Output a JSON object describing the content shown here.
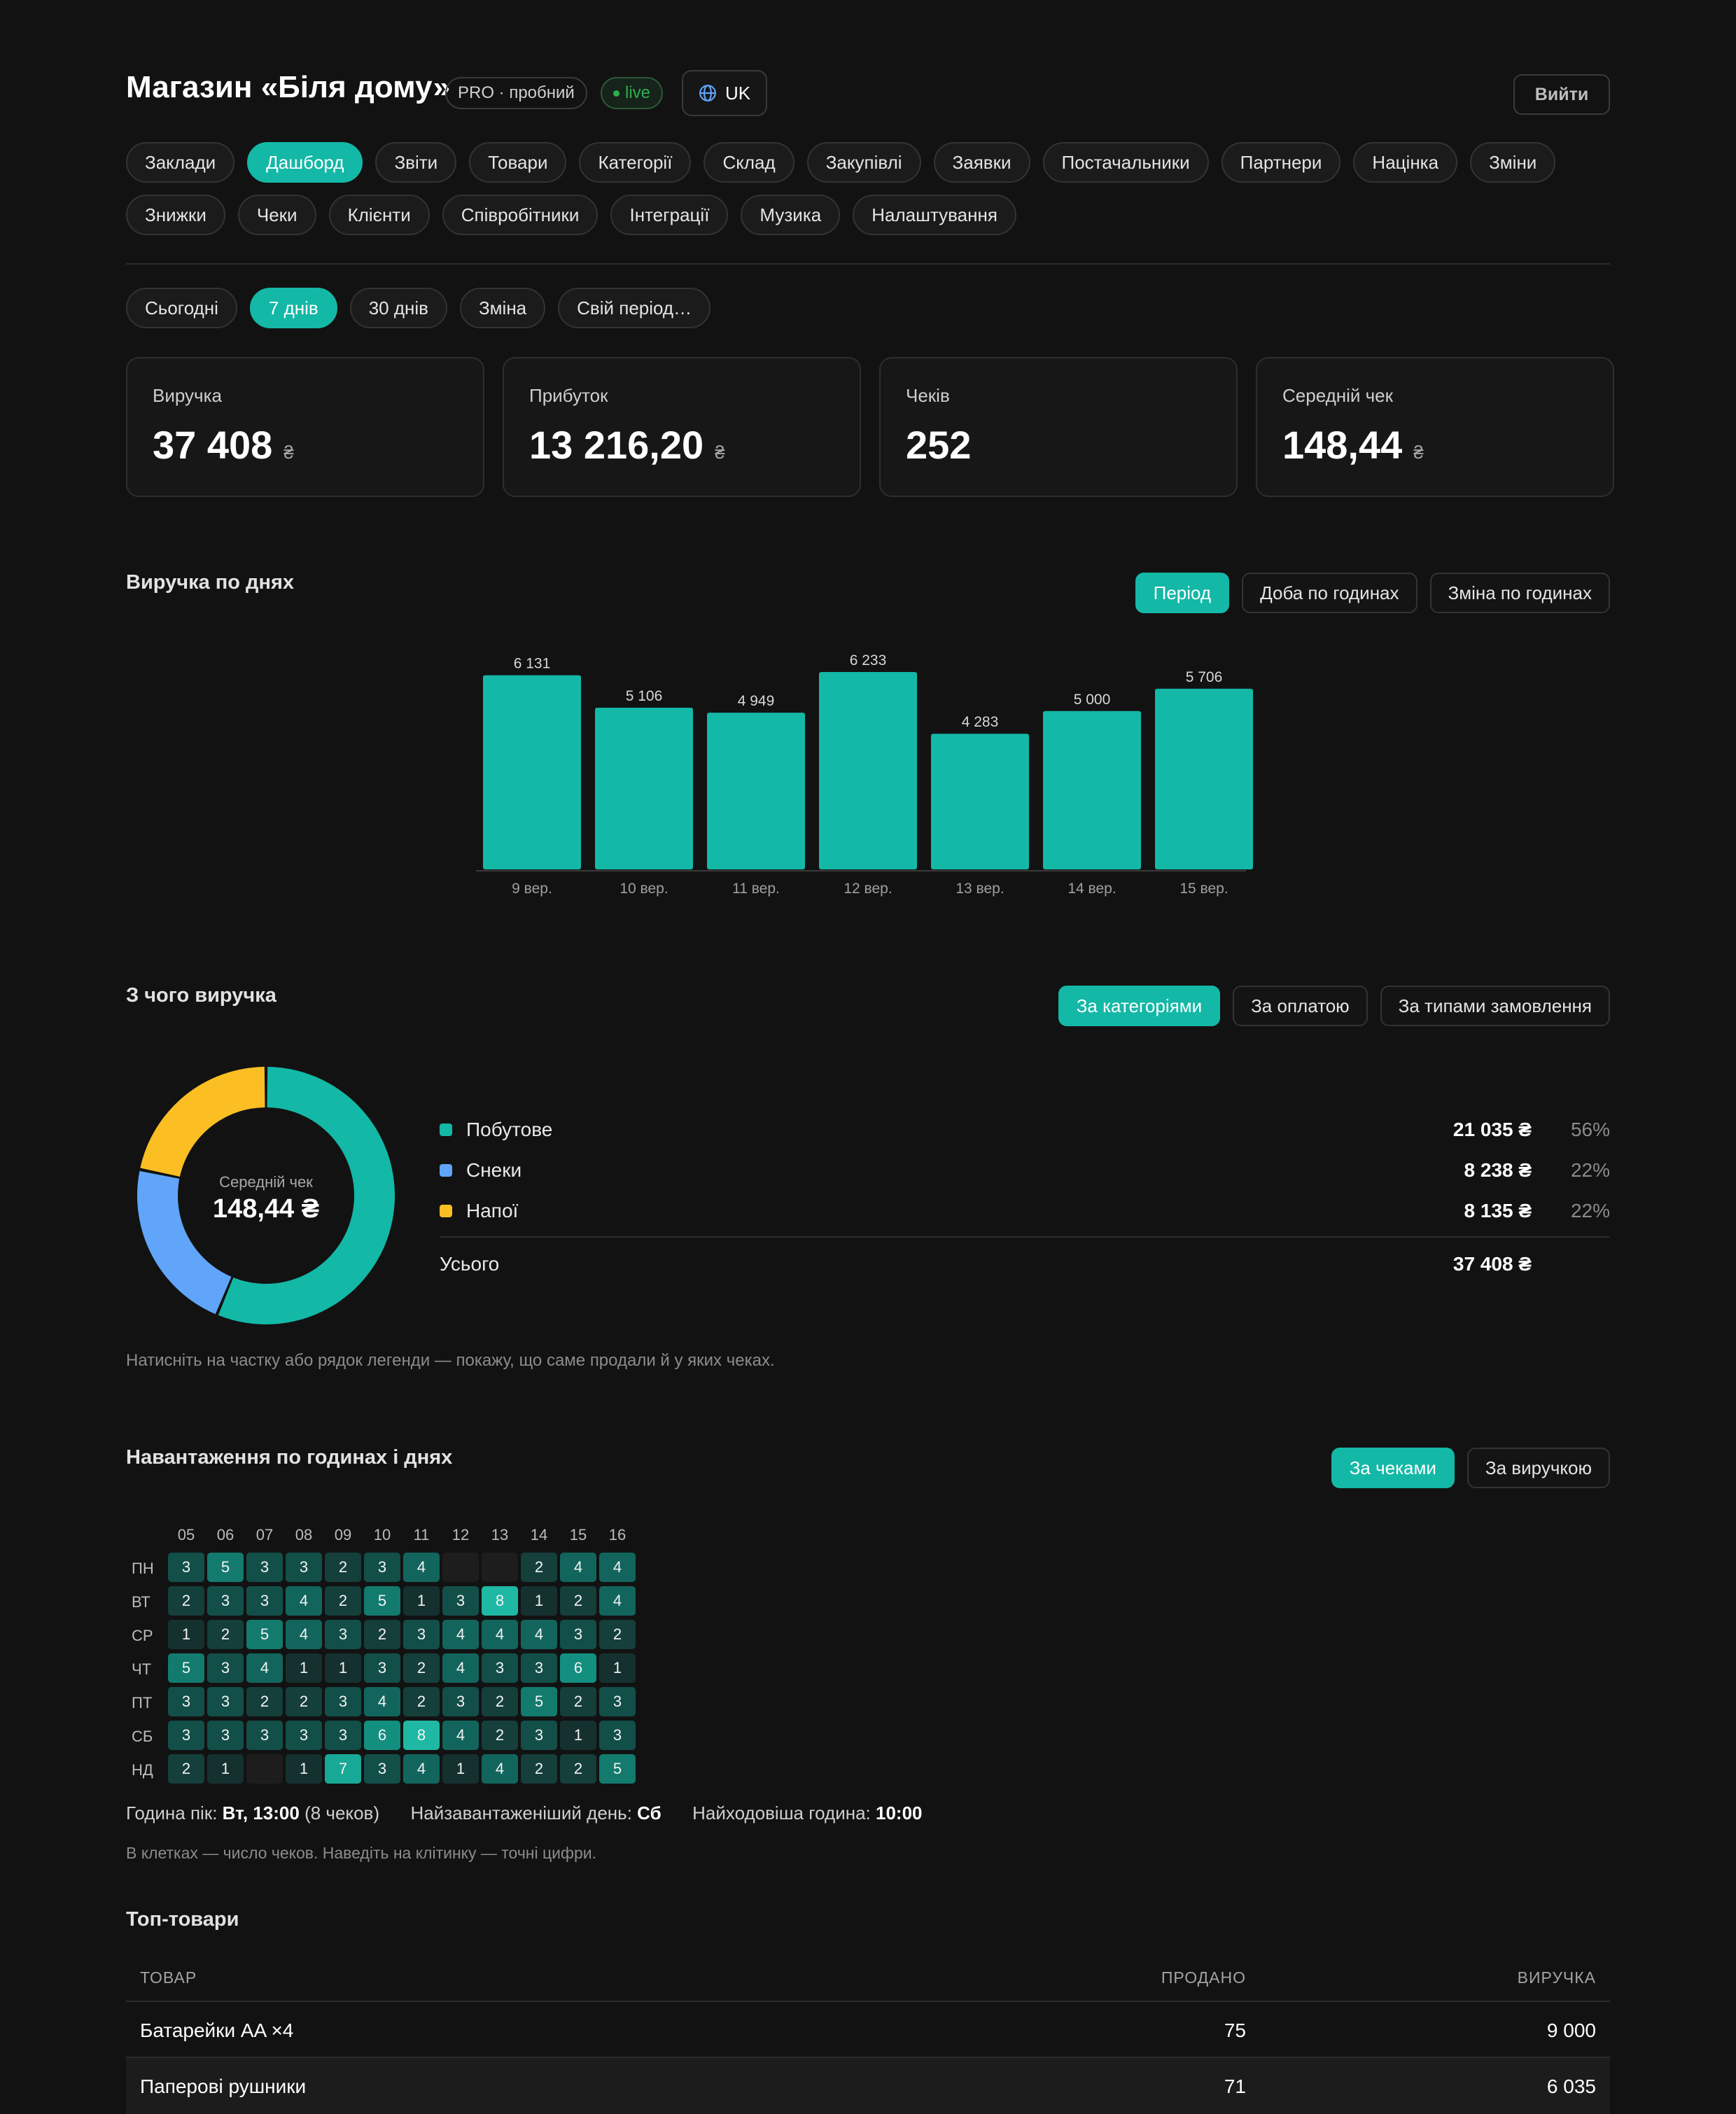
{
  "header": {
    "title": "Магазин «Біля дому»",
    "plan_badge": "PRO · пробний",
    "live_badge": "live",
    "lang": "UK",
    "logout": "Вийти"
  },
  "nav": {
    "row1": [
      "Заклади",
      "Дашборд",
      "Звіти",
      "Товари",
      "Категорії",
      "Склад",
      "Закупівлі",
      "Заявки",
      "Постачальники",
      "Партнери",
      "Націнка",
      "Зміни"
    ],
    "row2": [
      "Знижки",
      "Чеки",
      "Клієнти",
      "Співробітники",
      "Інтеграції",
      "Музика",
      "Налаштування"
    ],
    "active": "Дашборд"
  },
  "periods": {
    "items": [
      "Сьогодні",
      "7 днів",
      "30 днів",
      "Зміна",
      "Свій період…"
    ],
    "active": "7 днів"
  },
  "kpis": [
    {
      "label": "Виручка",
      "value": "37 408",
      "unit": "₴"
    },
    {
      "label": "Прибуток",
      "value": "13 216,20",
      "unit": "₴"
    },
    {
      "label": "Чеків",
      "value": "252",
      "unit": ""
    },
    {
      "label": "Середній чек",
      "value": "148,44",
      "unit": "₴"
    }
  ],
  "revenue_section": {
    "title": "Виручка по днях",
    "modes": [
      "Період",
      "Доба по годинах",
      "Зміна по годинах"
    ],
    "active_mode": "Період"
  },
  "chart_data": {
    "type": "bar",
    "categories": [
      "9 вер.",
      "10 вер.",
      "11 вер.",
      "12 вер.",
      "13 вер.",
      "14 вер.",
      "15 вер."
    ],
    "values": [
      6131,
      5106,
      4949,
      6233,
      4283,
      5000,
      5706
    ],
    "value_labels": [
      "6 131",
      "5 106",
      "4 949",
      "6 233",
      "4 283",
      "5 000",
      "5 706"
    ],
    "ylim": [
      0,
      6233
    ],
    "color": "#14b8a6",
    "grid": false
  },
  "breakdown": {
    "title": "З чого виручка",
    "modes": [
      "За категоріями",
      "За оплатою",
      "За типами замовлення"
    ],
    "active_mode": "За категоріями",
    "center_label": "Середній чек",
    "center_value": "148,44 ₴",
    "items": [
      {
        "name": "Побутове",
        "amount": "21 035 ₴",
        "pct": "56%",
        "value": 21035,
        "color": "#14b8a6"
      },
      {
        "name": "Снеки",
        "amount": "8 238 ₴",
        "pct": "22%",
        "value": 8238,
        "color": "#60a5fa"
      },
      {
        "name": "Напої",
        "amount": "8 135 ₴",
        "pct": "22%",
        "value": 8135,
        "color": "#fbbf24"
      }
    ],
    "total_label": "Усього",
    "total_amount": "37 408 ₴",
    "hint": "Натисніть на частку або рядок легенди — покажу, що саме продали й у яких чеках."
  },
  "heatmap": {
    "title": "Навантаження по годинах і днях",
    "modes": [
      "За чеками",
      "За виручкою"
    ],
    "active_mode": "За чеками",
    "hours": [
      "05",
      "06",
      "07",
      "08",
      "09",
      "10",
      "11",
      "12",
      "13",
      "14",
      "15",
      "16"
    ],
    "days": [
      "ПН",
      "ВТ",
      "СР",
      "ЧТ",
      "ПТ",
      "СБ",
      "НД"
    ],
    "values": [
      [
        3,
        5,
        3,
        3,
        2,
        3,
        4,
        null,
        null,
        2,
        4,
        4
      ],
      [
        2,
        3,
        3,
        4,
        2,
        5,
        1,
        3,
        8,
        1,
        2,
        4
      ],
      [
        1,
        2,
        5,
        4,
        3,
        2,
        3,
        4,
        4,
        4,
        3,
        2
      ],
      [
        5,
        3,
        4,
        1,
        1,
        3,
        2,
        4,
        3,
        3,
        6,
        1
      ],
      [
        3,
        3,
        2,
        2,
        3,
        4,
        2,
        3,
        2,
        5,
        2,
        3
      ],
      [
        3,
        3,
        3,
        3,
        3,
        6,
        8,
        4,
        2,
        3,
        1,
        3
      ],
      [
        2,
        1,
        null,
        1,
        7,
        3,
        4,
        1,
        4,
        2,
        2,
        5
      ]
    ],
    "peak_label": "Година пік:",
    "peak_value": "Вт, 13:00",
    "peak_note": "(8 чеков)",
    "busiest_day_label": "Найзавантаженіший день:",
    "busiest_day_value": "Сб",
    "top_hour_label": "Найходовіша година:",
    "top_hour_value": "10:00",
    "hint": "В клетках — число чеков. Наведіть на клітинку — точні цифри."
  },
  "top_products": {
    "title": "Топ-товари",
    "columns": [
      "ТОВАР",
      "ПРОДАНО",
      "ВИРУЧКА"
    ],
    "rows": [
      [
        "Батарейки AA ×4",
        "75",
        "9 000"
      ],
      [
        "Паперові рушники",
        "71",
        "6 035"
      ]
    ]
  }
}
